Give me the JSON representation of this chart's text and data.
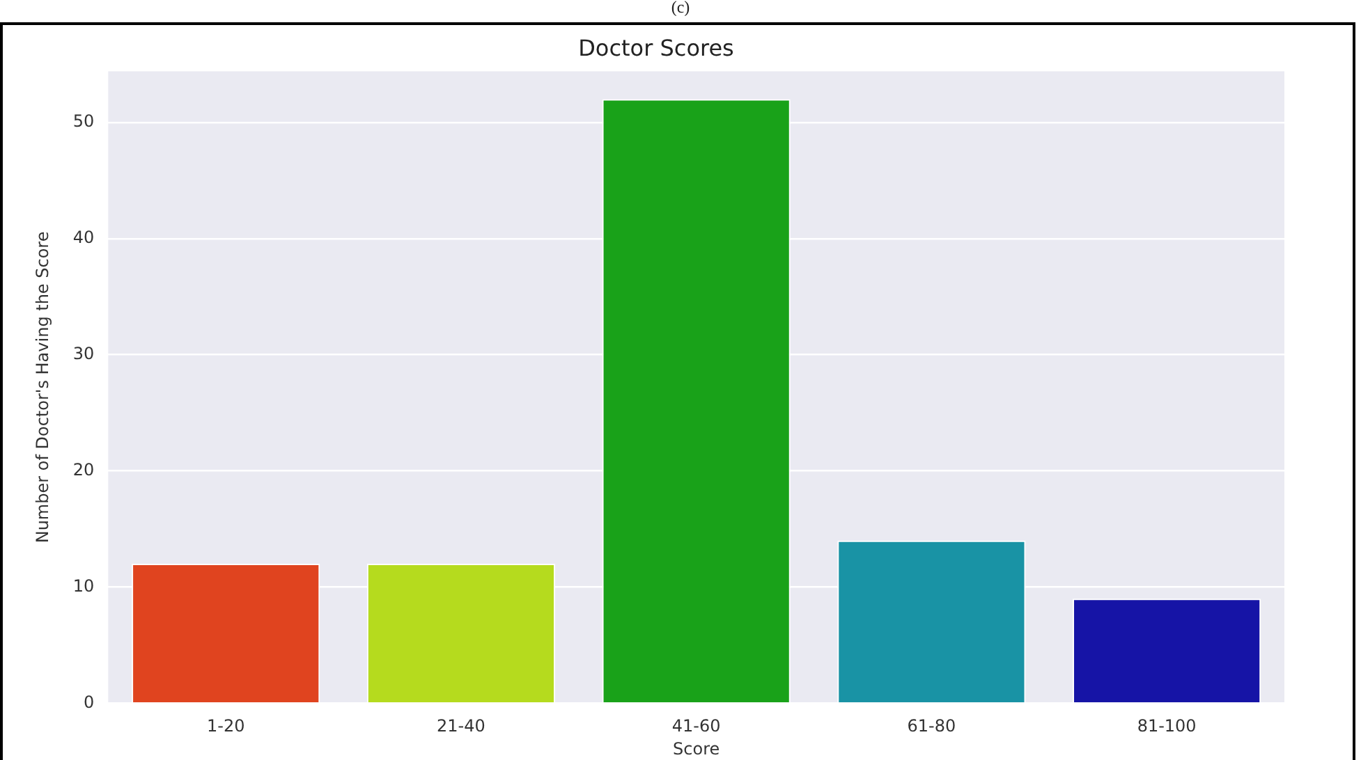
{
  "chart_data": {
    "type": "bar",
    "title": "Doctor Scores",
    "xlabel": "Score",
    "ylabel": "Number of Doctor's Having the Score",
    "annotations": [
      "(c)"
    ],
    "categories": [
      "1-20",
      "21-40",
      "41-60",
      "61-80",
      "81-100"
    ],
    "values": [
      12,
      12,
      52,
      14,
      9
    ],
    "colors": [
      "#e0441f",
      "#b5db1e",
      "#19a219",
      "#1993a5",
      "#1614a6"
    ],
    "ylim": [
      0,
      54.4
    ],
    "yticks": [
      0,
      10,
      20,
      30,
      40,
      50
    ],
    "grid": "y"
  }
}
